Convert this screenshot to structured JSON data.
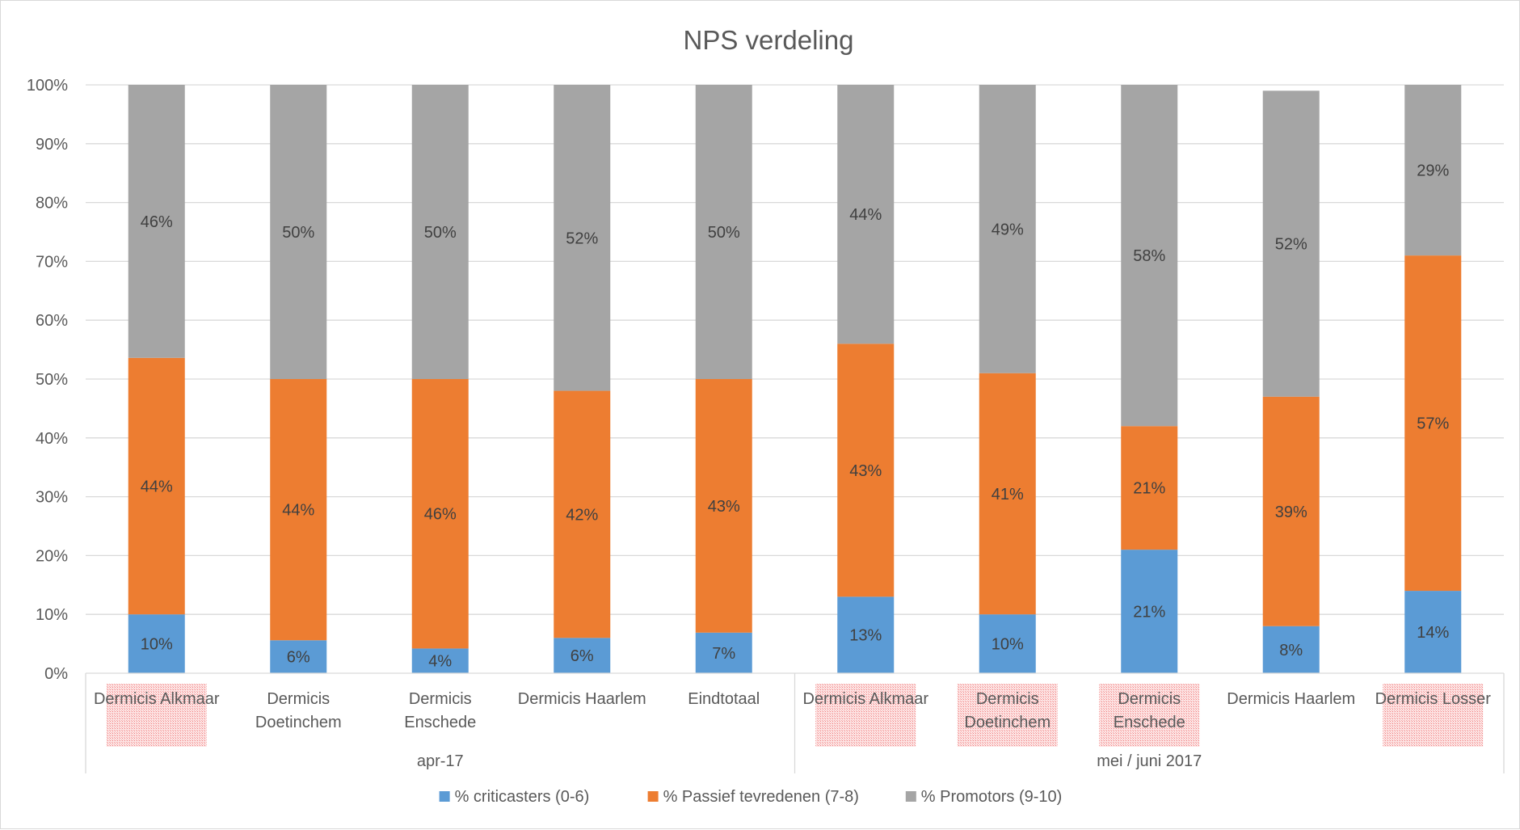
{
  "chart_data": {
    "type": "bar",
    "stacked": true,
    "title": "NPS verdeling",
    "ylim": [
      0,
      1
    ],
    "yticks": [
      "0%",
      "10%",
      "20%",
      "30%",
      "40%",
      "50%",
      "60%",
      "70%",
      "80%",
      "90%",
      "100%"
    ],
    "grid": true,
    "legend_position": "bottom",
    "groups": [
      {
        "label": "apr-17",
        "categories": [
          "Dermicis Alkmaar",
          "Dermicis Doetinchem",
          "Dermicis Enschede",
          "Dermicis Haarlem",
          "Eindtotaal"
        ]
      },
      {
        "label": "mei / juni 2017",
        "categories": [
          "Dermicis Alkmaar",
          "Dermicis Doetinchem",
          "Dermicis Enschede",
          "Dermicis Haarlem",
          "Dermicis Losser"
        ]
      }
    ],
    "category_labels": [
      [
        "Dermicis Alkmaar"
      ],
      [
        "Dermicis",
        "Doetinchem"
      ],
      [
        "Dermicis",
        "Enschede"
      ],
      [
        "Dermicis Haarlem"
      ],
      [
        "Eindtotaal"
      ],
      [
        "Dermicis Alkmaar"
      ],
      [
        "Dermicis",
        "Doetinchem"
      ],
      [
        "Dermicis",
        "Enschede"
      ],
      [
        "Dermicis Haarlem"
      ],
      [
        "Dermicis Losser"
      ]
    ],
    "highlighted_labels": [
      true,
      false,
      false,
      false,
      false,
      true,
      true,
      true,
      false,
      true
    ],
    "series": [
      {
        "name": "% criticasters (0-6)",
        "color": "#5b9bd5",
        "values": [
          0.1,
          0.056,
          0.042,
          0.06,
          0.069,
          0.13,
          0.1,
          0.21,
          0.08,
          0.14
        ],
        "labels": [
          "10%",
          "6%",
          "4%",
          "6%",
          "7%",
          "13%",
          "10%",
          "21%",
          "8%",
          "14%"
        ]
      },
      {
        "name": "% Passief tevredenen (7-8)",
        "color": "#ed7d31",
        "values": [
          0.436,
          0.444,
          0.458,
          0.42,
          0.431,
          0.43,
          0.41,
          0.21,
          0.39,
          0.57
        ],
        "labels": [
          "44%",
          "44%",
          "46%",
          "42%",
          "43%",
          "43%",
          "41%",
          "21%",
          "39%",
          "57%"
        ]
      },
      {
        "name": "% Promotors (9-10)",
        "color": "#a5a5a5",
        "values": [
          0.464,
          0.5,
          0.5,
          0.52,
          0.5,
          0.44,
          0.49,
          0.58,
          0.52,
          0.29
        ],
        "labels": [
          "46%",
          "50%",
          "50%",
          "52%",
          "50%",
          "44%",
          "49%",
          "58%",
          "52%",
          "29%"
        ]
      }
    ]
  }
}
